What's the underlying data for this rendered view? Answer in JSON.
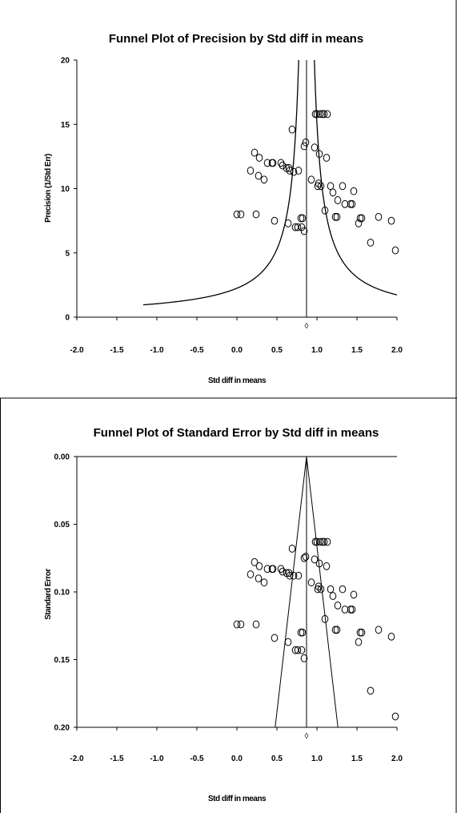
{
  "chart_data": [
    {
      "type": "scatter",
      "title": "Funnel Plot of Precision by Std diff in means",
      "xlabel": "Std diff in means",
      "ylabel": "Precision (1/Std Err)",
      "xlim": [
        -2.0,
        2.0
      ],
      "ylim": [
        0,
        20
      ],
      "x_ticks": [
        "-2.0",
        "-1.5",
        "-1.0",
        "-0.5",
        "0.0",
        "0.5",
        "1.0",
        "1.5",
        "2.0"
      ],
      "y_ticks": [
        "0",
        "5",
        "10",
        "15",
        "20"
      ],
      "summary_effect": 0.87,
      "funnel": {
        "center": 0.87,
        "z": 1.96,
        "x_min": -1.17
      },
      "points": [
        {
          "x": 0.0,
          "y": 8.0
        },
        {
          "x": 0.05,
          "y": 8.0
        },
        {
          "x": 0.17,
          "y": 11.4
        },
        {
          "x": 0.22,
          "y": 12.8
        },
        {
          "x": 0.24,
          "y": 8.0
        },
        {
          "x": 0.27,
          "y": 11.0
        },
        {
          "x": 0.28,
          "y": 12.4
        },
        {
          "x": 0.34,
          "y": 10.7
        },
        {
          "x": 0.38,
          "y": 12.0
        },
        {
          "x": 0.44,
          "y": 12.0
        },
        {
          "x": 0.45,
          "y": 12.0
        },
        {
          "x": 0.47,
          "y": 7.5
        },
        {
          "x": 0.55,
          "y": 12.0
        },
        {
          "x": 0.57,
          "y": 11.8
        },
        {
          "x": 0.62,
          "y": 11.6
        },
        {
          "x": 0.64,
          "y": 7.3
        },
        {
          "x": 0.65,
          "y": 11.6
        },
        {
          "x": 0.66,
          "y": 11.4
        },
        {
          "x": 0.69,
          "y": 14.6
        },
        {
          "x": 0.71,
          "y": 11.3
        },
        {
          "x": 0.73,
          "y": 7.0
        },
        {
          "x": 0.76,
          "y": 7.0
        },
        {
          "x": 0.77,
          "y": 11.4
        },
        {
          "x": 0.8,
          "y": 7.7
        },
        {
          "x": 0.81,
          "y": 7.0
        },
        {
          "x": 0.82,
          "y": 7.7
        },
        {
          "x": 0.84,
          "y": 6.7
        },
        {
          "x": 0.84,
          "y": 13.3
        },
        {
          "x": 0.86,
          "y": 13.6
        },
        {
          "x": 0.93,
          "y": 10.7
        },
        {
          "x": 0.97,
          "y": 13.2
        },
        {
          "x": 0.98,
          "y": 15.8
        },
        {
          "x": 1.0,
          "y": 15.8
        },
        {
          "x": 1.01,
          "y": 10.2
        },
        {
          "x": 1.02,
          "y": 10.4
        },
        {
          "x": 1.03,
          "y": 12.7
        },
        {
          "x": 1.04,
          "y": 15.8
        },
        {
          "x": 1.05,
          "y": 10.2
        },
        {
          "x": 1.07,
          "y": 15.8
        },
        {
          "x": 1.09,
          "y": 15.8
        },
        {
          "x": 1.1,
          "y": 8.3
        },
        {
          "x": 1.12,
          "y": 12.4
        },
        {
          "x": 1.13,
          "y": 15.8
        },
        {
          "x": 1.17,
          "y": 10.2
        },
        {
          "x": 1.2,
          "y": 9.7
        },
        {
          "x": 1.23,
          "y": 7.8
        },
        {
          "x": 1.25,
          "y": 7.8
        },
        {
          "x": 1.26,
          "y": 9.1
        },
        {
          "x": 1.32,
          "y": 10.2
        },
        {
          "x": 1.35,
          "y": 8.8
        },
        {
          "x": 1.42,
          "y": 8.8
        },
        {
          "x": 1.44,
          "y": 8.8
        },
        {
          "x": 1.46,
          "y": 9.8
        },
        {
          "x": 1.52,
          "y": 7.3
        },
        {
          "x": 1.54,
          "y": 7.7
        },
        {
          "x": 1.56,
          "y": 7.7
        },
        {
          "x": 1.67,
          "y": 5.8
        },
        {
          "x": 1.77,
          "y": 7.8
        },
        {
          "x": 1.93,
          "y": 7.5
        },
        {
          "x": 1.98,
          "y": 5.2
        }
      ]
    },
    {
      "type": "scatter",
      "title": "Funnel Plot of Standard Error by Std diff in means",
      "xlabel": "Std diff in means",
      "ylabel": "Standard Error",
      "xlim": [
        -2.0,
        2.0
      ],
      "ylim": [
        0.0,
        0.2
      ],
      "y_reversed": true,
      "x_ticks": [
        "-2.0",
        "-1.5",
        "-1.0",
        "-0.5",
        "0.0",
        "0.5",
        "1.0",
        "1.5",
        "2.0"
      ],
      "y_ticks": [
        "0.00",
        "0.05",
        "0.10",
        "0.15",
        "0.20"
      ],
      "summary_effect": 0.87,
      "funnel": {
        "center": 0.87,
        "z": 1.96
      },
      "points": [
        {
          "x": 0.0,
          "y": 0.124
        },
        {
          "x": 0.05,
          "y": 0.124
        },
        {
          "x": 0.17,
          "y": 0.087
        },
        {
          "x": 0.22,
          "y": 0.078
        },
        {
          "x": 0.24,
          "y": 0.124
        },
        {
          "x": 0.27,
          "y": 0.09
        },
        {
          "x": 0.28,
          "y": 0.081
        },
        {
          "x": 0.34,
          "y": 0.093
        },
        {
          "x": 0.38,
          "y": 0.083
        },
        {
          "x": 0.44,
          "y": 0.083
        },
        {
          "x": 0.45,
          "y": 0.083
        },
        {
          "x": 0.47,
          "y": 0.134
        },
        {
          "x": 0.55,
          "y": 0.083
        },
        {
          "x": 0.57,
          "y": 0.085
        },
        {
          "x": 0.62,
          "y": 0.086
        },
        {
          "x": 0.64,
          "y": 0.137
        },
        {
          "x": 0.65,
          "y": 0.086
        },
        {
          "x": 0.66,
          "y": 0.088
        },
        {
          "x": 0.69,
          "y": 0.068
        },
        {
          "x": 0.71,
          "y": 0.088
        },
        {
          "x": 0.73,
          "y": 0.143
        },
        {
          "x": 0.76,
          "y": 0.143
        },
        {
          "x": 0.77,
          "y": 0.088
        },
        {
          "x": 0.8,
          "y": 0.13
        },
        {
          "x": 0.81,
          "y": 0.143
        },
        {
          "x": 0.82,
          "y": 0.13
        },
        {
          "x": 0.84,
          "y": 0.149
        },
        {
          "x": 0.84,
          "y": 0.075
        },
        {
          "x": 0.86,
          "y": 0.074
        },
        {
          "x": 0.93,
          "y": 0.093
        },
        {
          "x": 0.97,
          "y": 0.076
        },
        {
          "x": 0.98,
          "y": 0.063
        },
        {
          "x": 1.0,
          "y": 0.063
        },
        {
          "x": 1.01,
          "y": 0.098
        },
        {
          "x": 1.02,
          "y": 0.096
        },
        {
          "x": 1.03,
          "y": 0.079
        },
        {
          "x": 1.04,
          "y": 0.063
        },
        {
          "x": 1.05,
          "y": 0.098
        },
        {
          "x": 1.07,
          "y": 0.063
        },
        {
          "x": 1.09,
          "y": 0.063
        },
        {
          "x": 1.1,
          "y": 0.12
        },
        {
          "x": 1.12,
          "y": 0.081
        },
        {
          "x": 1.13,
          "y": 0.063
        },
        {
          "x": 1.17,
          "y": 0.098
        },
        {
          "x": 1.2,
          "y": 0.103
        },
        {
          "x": 1.23,
          "y": 0.128
        },
        {
          "x": 1.25,
          "y": 0.128
        },
        {
          "x": 1.26,
          "y": 0.11
        },
        {
          "x": 1.32,
          "y": 0.098
        },
        {
          "x": 1.35,
          "y": 0.113
        },
        {
          "x": 1.42,
          "y": 0.113
        },
        {
          "x": 1.44,
          "y": 0.113
        },
        {
          "x": 1.46,
          "y": 0.102
        },
        {
          "x": 1.52,
          "y": 0.137
        },
        {
          "x": 1.54,
          "y": 0.13
        },
        {
          "x": 1.56,
          "y": 0.13
        },
        {
          "x": 1.67,
          "y": 0.173
        },
        {
          "x": 1.77,
          "y": 0.128
        },
        {
          "x": 1.93,
          "y": 0.133
        },
        {
          "x": 1.98,
          "y": 0.192
        }
      ]
    }
  ]
}
